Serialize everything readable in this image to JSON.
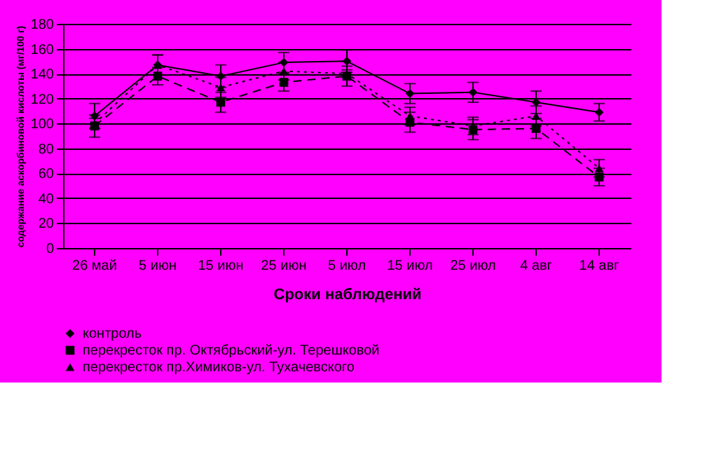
{
  "chart_data": {
    "type": "line",
    "xlabel": "Сроки наблюдений",
    "ylabel": "содержание аскорбиновой кислоты (мг/100 г)",
    "categories": [
      "26 май",
      "5 июн",
      "15 июн",
      "25 июн",
      "5 июл",
      "15 июл",
      "25 июл",
      "4 авг",
      "14 авг"
    ],
    "series": [
      {
        "name": "контроль",
        "color": "#000000",
        "marker": "diamond",
        "line_style": "solid",
        "values": [
          106,
          147,
          138,
          149,
          150,
          124,
          125,
          117,
          109
        ],
        "errors": [
          10,
          8,
          9,
          8,
          9,
          8,
          8,
          9,
          7
        ]
      },
      {
        "name": "перекресток пр. Октябрьский-ул. Терешковой",
        "color": "#000000",
        "marker": "square",
        "line_style": "dashed",
        "values": [
          98,
          138,
          117,
          133,
          138,
          101,
          95,
          96,
          57
        ],
        "errors": [
          9,
          7,
          8,
          7,
          8,
          8,
          8,
          8,
          7
        ]
      },
      {
        "name": "перекресток пр.Химиков-ул. Тухачевского",
        "color": "#000000",
        "marker": "triangle",
        "line_style": "dotted",
        "values": [
          100,
          147,
          129,
          142,
          140,
          106,
          98,
          106,
          64
        ],
        "errors": [
          4,
          8,
          8,
          7,
          3,
          7,
          7,
          8,
          7
        ]
      }
    ],
    "ylim": [
      0,
      180
    ],
    "yticks": [
      0,
      20,
      40,
      60,
      80,
      100,
      120,
      140,
      160,
      180
    ],
    "grid": "y",
    "legend": "bottom"
  }
}
